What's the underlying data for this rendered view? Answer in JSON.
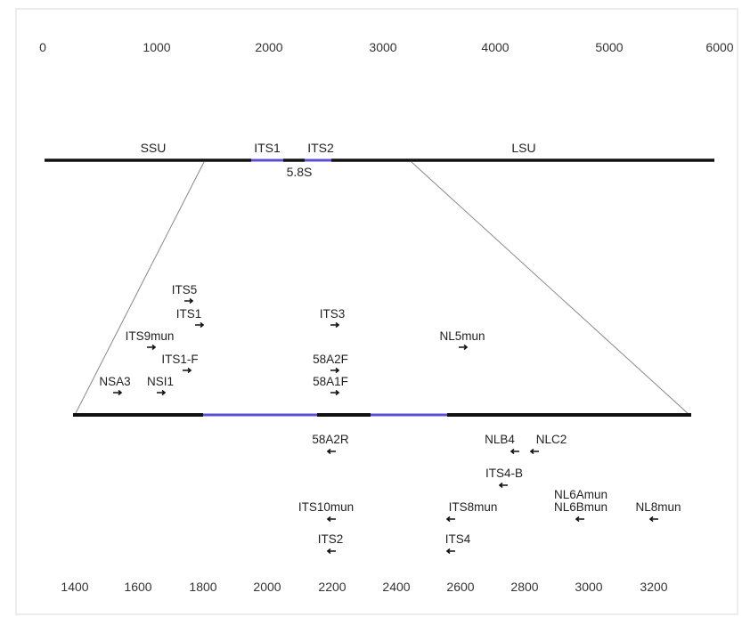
{
  "top_axis": {
    "ticks": [
      "0",
      "1000",
      "2000",
      "3000",
      "4000",
      "5000",
      "6000"
    ]
  },
  "bottom_axis": {
    "ticks": [
      "1400",
      "1600",
      "1800",
      "2000",
      "2200",
      "2400",
      "2600",
      "2800",
      "3000",
      "3200"
    ]
  },
  "regions": {
    "ssu": "SSU",
    "its1": "ITS1",
    "its2": "ITS2",
    "s58": "5.8S",
    "lsu": "LSU"
  },
  "primers": [
    {
      "label": "ITS5",
      "direction": "forward"
    },
    {
      "label": "ITS1",
      "direction": "forward"
    },
    {
      "label": "ITS9mun",
      "direction": "forward"
    },
    {
      "label": "ITS1-F",
      "direction": "forward"
    },
    {
      "label": "NSA3",
      "direction": "forward"
    },
    {
      "label": "NSI1",
      "direction": "forward"
    },
    {
      "label": "ITS3",
      "direction": "forward"
    },
    {
      "label": "58A2F",
      "direction": "forward"
    },
    {
      "label": "58A1F",
      "direction": "forward"
    },
    {
      "label": "NL5mun",
      "direction": "forward"
    },
    {
      "label": "58A2R",
      "direction": "reverse"
    },
    {
      "label": "NLB4",
      "direction": "reverse"
    },
    {
      "label": "NLC2",
      "direction": "reverse"
    },
    {
      "label": "ITS4-B",
      "direction": "reverse"
    },
    {
      "label": "ITS10mun",
      "direction": "reverse"
    },
    {
      "label": "ITS8mun",
      "direction": "reverse"
    },
    {
      "label": "NL6Amun",
      "direction": "reverse"
    },
    {
      "label": "NL6Bmun",
      "direction": "reverse"
    },
    {
      "label": "NL8mun",
      "direction": "reverse"
    },
    {
      "label": "ITS2",
      "direction": "reverse"
    },
    {
      "label": "ITS4",
      "direction": "reverse"
    }
  ],
  "colors": {
    "rdna": "#111111",
    "spacer": "#5a4fd0",
    "zoom_lines": "#888888",
    "text": "#222222"
  }
}
